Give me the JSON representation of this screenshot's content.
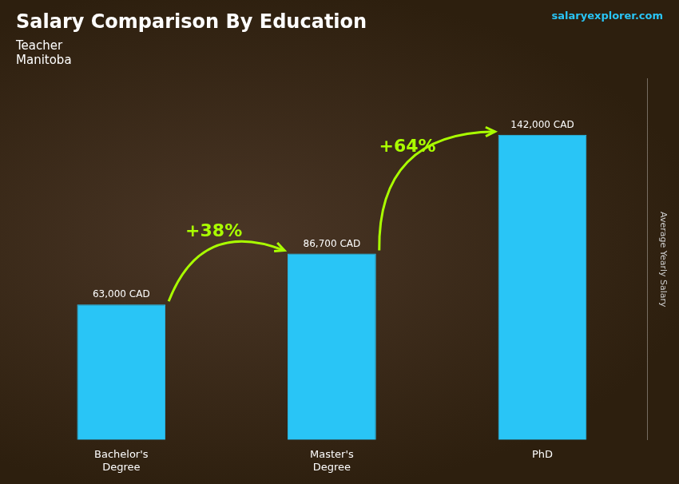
{
  "chart_data": {
    "type": "bar",
    "title": "Salary Comparison By Education",
    "subtitle": [
      "Teacher",
      "Manitoba"
    ],
    "ylabel": "Average Yearly Salary",
    "categories": [
      "Bachelor's\nDegree",
      "Master's\nDegree",
      "PhD"
    ],
    "values": [
      63000,
      86700,
      142000
    ],
    "value_labels": [
      "63,000 CAD",
      "86,700 CAD",
      "142,000 CAD"
    ],
    "data_labels": true,
    "color": "#29c5f6",
    "ylim": [
      0,
      168000
    ],
    "grid": false,
    "tick_labels": "x",
    "annotations": [
      {
        "text": "+38%",
        "between": [
          "Bachelor's\nDegree",
          "Master's\nDegree"
        ]
      },
      {
        "text": "+64%",
        "between": [
          "Master's\nDegree",
          "PhD"
        ]
      },
      {
        "text": "salaryexplorer.com"
      }
    ]
  }
}
